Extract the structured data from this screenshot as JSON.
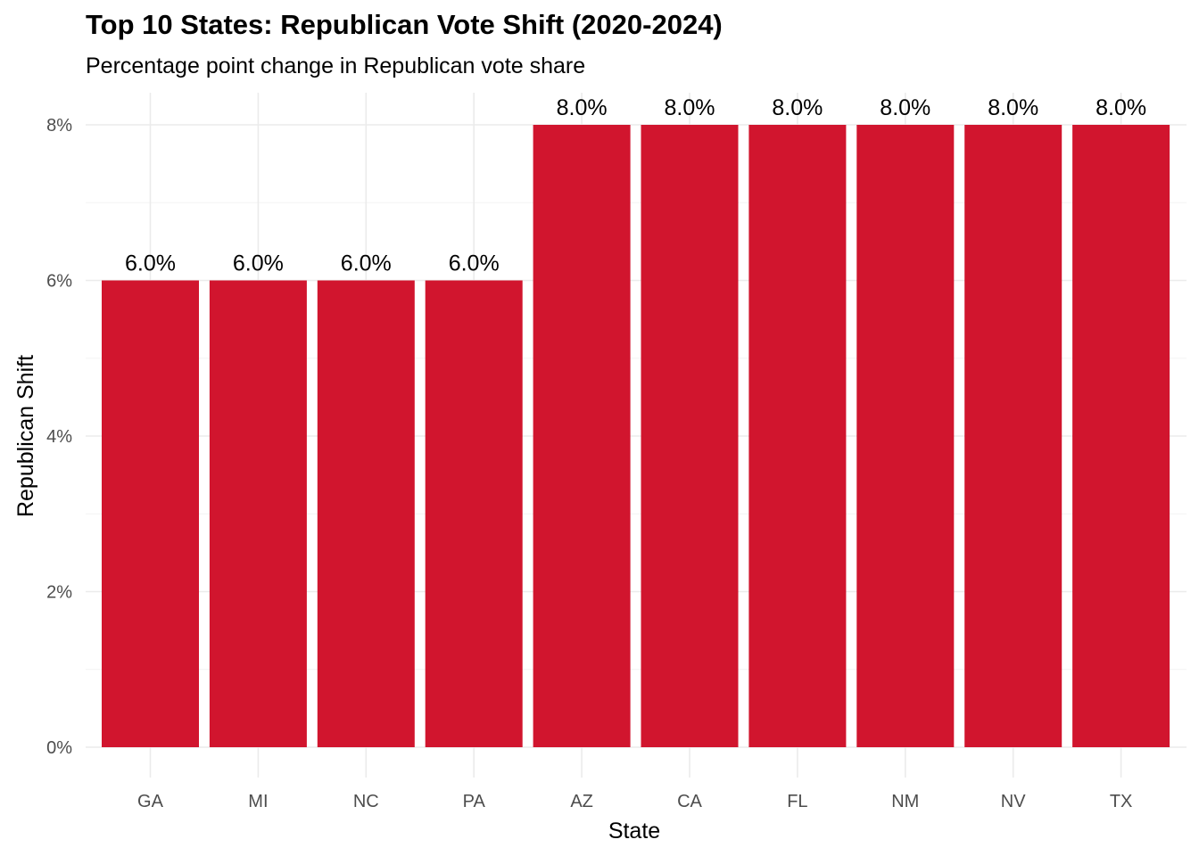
{
  "chart_data": {
    "type": "bar",
    "title": "Top 10 States: Republican Vote Shift (2020-2024)",
    "subtitle": "Percentage point change in Republican vote share",
    "xlabel": "State",
    "ylabel": "Republican Shift",
    "categories": [
      "GA",
      "MI",
      "NC",
      "PA",
      "AZ",
      "CA",
      "FL",
      "NM",
      "NV",
      "TX"
    ],
    "values": [
      6.0,
      6.0,
      6.0,
      6.0,
      8.0,
      8.0,
      8.0,
      8.0,
      8.0,
      8.0
    ],
    "data_labels": [
      "6.0%",
      "6.0%",
      "6.0%",
      "6.0%",
      "8.0%",
      "8.0%",
      "8.0%",
      "8.0%",
      "8.0%",
      "8.0%"
    ],
    "ylim": [
      0,
      8
    ],
    "y_ticks": [
      0,
      2,
      4,
      6,
      8
    ],
    "y_tick_labels": [
      "0%",
      "2%",
      "4%",
      "6%",
      "8%"
    ],
    "grid": true,
    "legend": "none",
    "bar_color": "#d1152e",
    "grid_color": "#ebebeb"
  }
}
